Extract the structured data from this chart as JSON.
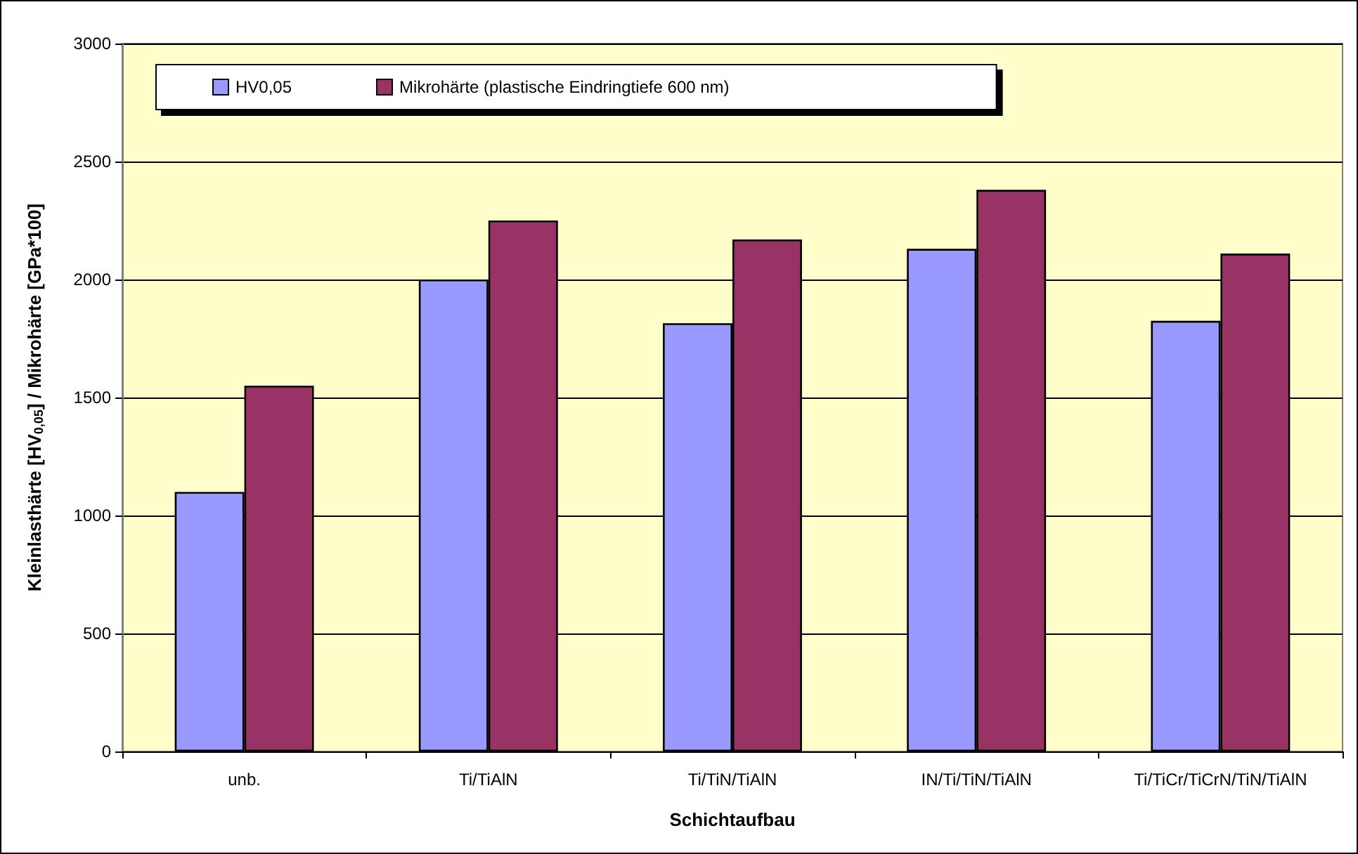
{
  "chart_data": {
    "type": "bar",
    "xlabel": "Schichtaufbau",
    "ylabel": "Kleinlasthärte [HV$_{0,05}$] / Mikrohärte [GPa*100]",
    "categories": [
      "unb.",
      "Ti/TiAlN",
      "Ti/TiN/TiAlN",
      "IN/Ti/TiN/TiAlN",
      "Ti/TiCr/TiCrN/TiN/TiAlN"
    ],
    "series": [
      {
        "name": "HV0,05",
        "color": "#9999ff",
        "values": [
          1100,
          2000,
          1815,
          2130,
          1825
        ]
      },
      {
        "name": "Mikrohärte (plastische Eindringtiefe 600 nm)",
        "color": "#993366",
        "values": [
          1550,
          2250,
          2170,
          2380,
          2110
        ]
      }
    ],
    "ylim": [
      0,
      3000
    ],
    "yticks": [
      0,
      500,
      1000,
      1500,
      2000,
      2500,
      3000
    ],
    "grid": "y",
    "legend": "top"
  }
}
